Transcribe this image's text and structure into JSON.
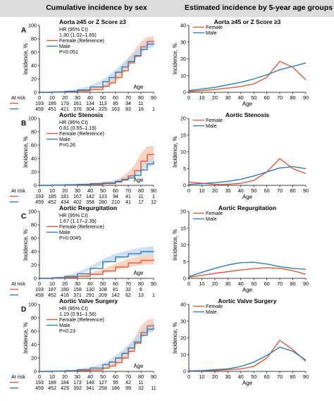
{
  "header": {
    "left_title": "Cumulative incidence by sex",
    "right_title": "Estimated incidence by 5-year age groups"
  },
  "colors": {
    "female": "#e8572a",
    "male": "#2b7bbf",
    "female_band": "#f6c2a8",
    "male_band": "#b9d6ee"
  },
  "chart_data": [
    {
      "type": "line",
      "panel": "A",
      "title": "Aorta ≥45 or Z Score ≥3",
      "xlabel": "Age",
      "ylabel": "Incidence, %",
      "xlim": [
        0,
        90
      ],
      "ylim": [
        0,
        100
      ],
      "xticks": [
        0,
        10,
        20,
        30,
        40,
        50,
        60,
        70,
        80,
        90
      ],
      "yticks": [
        0,
        20,
        40,
        60,
        80,
        100
      ],
      "stats": [
        "HR (95% CI)",
        "1.30 (1.02–1.65)",
        "P=0.051"
      ],
      "legend": [
        "Female (Reference)",
        "Male"
      ],
      "series": [
        {
          "name": "Female (Reference)",
          "color": "female",
          "x": [
            0,
            10,
            20,
            30,
            40,
            50,
            55,
            60,
            65,
            70,
            75,
            80,
            85,
            90
          ],
          "y": [
            0,
            0.3,
            0.8,
            2,
            4,
            9,
            14,
            22,
            32,
            44,
            55,
            68,
            76,
            77
          ],
          "lower": [
            0,
            0,
            0.2,
            1,
            2.5,
            6,
            10,
            16,
            25,
            36,
            47,
            60,
            69,
            71
          ],
          "upper": [
            0,
            0.8,
            1.5,
            3.5,
            6,
            12,
            18,
            28,
            39,
            52,
            63,
            76,
            83,
            84
          ]
        },
        {
          "name": "Male",
          "color": "male",
          "x": [
            0,
            10,
            20,
            30,
            40,
            50,
            55,
            60,
            65,
            70,
            75,
            80,
            85,
            90
          ],
          "y": [
            0,
            0.5,
            1.5,
            3.5,
            8,
            16,
            22,
            30,
            38,
            46,
            54,
            64,
            72,
            74
          ],
          "lower": [
            0,
            0.2,
            0.8,
            2,
            6,
            13,
            18,
            26,
            34,
            42,
            49,
            58,
            66,
            67
          ],
          "upper": [
            0,
            0.9,
            2.2,
            5,
            10,
            19,
            26,
            34,
            43,
            51,
            59,
            70,
            78,
            80
          ]
        }
      ],
      "at_risk": {
        "label": "At risk",
        "female": [
          "193",
          "185",
          "179",
          "161",
          "134",
          "113",
          "85",
          "34",
          "11"
        ],
        "male": [
          "459",
          "451",
          "421",
          "376",
          "304",
          "225",
          "163",
          "83",
          "18",
          "1"
        ]
      }
    },
    {
      "type": "line",
      "panel": "A",
      "title": "Aorta ≥45 or Z Score ≥3",
      "xlabel": "Age",
      "ylabel": "Incidence, %",
      "xlim": [
        0,
        90
      ],
      "ylim": [
        0,
        40
      ],
      "xticks": [
        0,
        10,
        20,
        30,
        40,
        50,
        60,
        70,
        80,
        90
      ],
      "yticks": [
        0,
        10,
        20,
        30,
        40
      ],
      "legend": [
        "Female",
        "Male"
      ],
      "series": [
        {
          "name": "Female",
          "color": "female",
          "x": [
            0,
            10,
            20,
            30,
            40,
            50,
            60,
            70,
            80,
            90
          ],
          "y": [
            0.5,
            1,
            1.7,
            2.5,
            3.5,
            5,
            9,
            18.5,
            15,
            7.5
          ]
        },
        {
          "name": "Male",
          "color": "male",
          "x": [
            0,
            10,
            20,
            30,
            40,
            50,
            60,
            70,
            80,
            90
          ],
          "y": [
            1,
            2,
            3,
            4.5,
            6,
            8,
            10.5,
            13.5,
            15.5,
            17.5
          ]
        }
      ]
    },
    {
      "type": "line",
      "panel": "B",
      "title": "Aortic Stenosis",
      "xlabel": "Age",
      "ylabel": "Incidence, %",
      "xlim": [
        0,
        90
      ],
      "ylim": [
        0,
        100
      ],
      "xticks": [
        0,
        10,
        20,
        30,
        40,
        50,
        60,
        70,
        80,
        90
      ],
      "yticks": [
        0,
        20,
        40,
        60,
        80,
        100
      ],
      "stats": [
        "HR (95% CI)",
        "0.81 (0.55–1.19)",
        "P=0.26"
      ],
      "legend": [
        "Female (Reference)",
        "Male"
      ],
      "series": [
        {
          "name": "Female (Reference)",
          "color": "female",
          "x": [
            0,
            10,
            20,
            30,
            40,
            50,
            60,
            65,
            70,
            75,
            80,
            85,
            90
          ],
          "y": [
            0,
            0.3,
            0.5,
            1,
            1.5,
            2.5,
            5,
            9,
            14,
            22,
            36,
            46,
            47
          ],
          "lower": [
            0,
            0,
            0.1,
            0.4,
            0.8,
            1.5,
            3,
            6,
            9,
            15,
            26,
            34,
            35
          ],
          "upper": [
            0,
            0.6,
            1,
            1.8,
            2.5,
            4,
            8,
            13,
            20,
            30,
            48,
            58,
            59
          ]
        },
        {
          "name": "Male",
          "color": "male",
          "x": [
            0,
            10,
            20,
            30,
            40,
            50,
            60,
            65,
            70,
            75,
            80,
            85,
            90
          ],
          "y": [
            0,
            0.5,
            1,
            1.5,
            2.5,
            3.5,
            6,
            8,
            11,
            15,
            23,
            32,
            36
          ],
          "lower": [
            0,
            0.2,
            0.5,
            0.8,
            1.5,
            2.5,
            4.5,
            6,
            8.5,
            12,
            19,
            27,
            30
          ],
          "upper": [
            0,
            0.8,
            1.5,
            2.2,
            3.5,
            5,
            7.5,
            10,
            14,
            18,
            27,
            37,
            42
          ]
        }
      ],
      "at_risk": {
        "label": "At risk",
        "female": [
          "193",
          "185",
          "181",
          "167",
          "142",
          "123",
          "94",
          "41",
          "11",
          "1"
        ],
        "male": [
          "459",
          "452",
          "434",
          "402",
          "358",
          "280",
          "210",
          "41",
          "17",
          "12"
        ]
      }
    },
    {
      "type": "line",
      "panel": "B",
      "title": "Aortic Stenosis",
      "xlabel": "Age",
      "ylabel": "Incidence, %",
      "xlim": [
        0,
        90
      ],
      "ylim": [
        0,
        20
      ],
      "xticks": [
        0,
        10,
        20,
        30,
        40,
        50,
        60,
        70,
        80,
        90
      ],
      "yticks": [
        0,
        5,
        10,
        15,
        20
      ],
      "legend": [
        "Female",
        "Male"
      ],
      "series": [
        {
          "name": "Female",
          "color": "female",
          "x": [
            0,
            10,
            20,
            30,
            40,
            50,
            60,
            70,
            80,
            90
          ],
          "y": [
            1,
            0.6,
            0.3,
            0.3,
            0.6,
            1.5,
            4,
            8,
            5,
            3.5
          ]
        },
        {
          "name": "Male",
          "color": "male",
          "x": [
            0,
            10,
            20,
            30,
            40,
            50,
            60,
            70,
            80,
            90
          ],
          "y": [
            0.3,
            0.5,
            0.8,
            1.2,
            1.8,
            2.8,
            4,
            5.2,
            5.6,
            5
          ]
        }
      ]
    },
    {
      "type": "line",
      "panel": "C",
      "title": "Aortic Regurgitation",
      "xlabel": "Age",
      "ylabel": "Incidence, %",
      "xlim": [
        0,
        90
      ],
      "ylim": [
        0,
        100
      ],
      "xticks": [
        0,
        10,
        20,
        30,
        40,
        50,
        60,
        70,
        80,
        90
      ],
      "yticks": [
        0,
        20,
        40,
        60,
        80,
        100
      ],
      "stats": [
        "HR (95% CI)",
        "1.67 (1.17–2.39)",
        "P=0.0045"
      ],
      "legend": [
        "Female (Reference)",
        "Male"
      ],
      "series": [
        {
          "name": "Female (Reference)",
          "color": "female",
          "x": [
            0,
            10,
            20,
            30,
            40,
            50,
            60,
            70,
            80,
            90
          ],
          "y": [
            0,
            0.5,
            1.5,
            3,
            6,
            11,
            17,
            23,
            27,
            28
          ],
          "lower": [
            0,
            0.1,
            0.8,
            1.8,
            4,
            8,
            12,
            17,
            20,
            21
          ],
          "upper": [
            0,
            1,
            2.5,
            4.5,
            8.5,
            14,
            22,
            29,
            34,
            36
          ]
        },
        {
          "name": "Male",
          "color": "male",
          "x": [
            0,
            10,
            20,
            30,
            40,
            50,
            60,
            70,
            80,
            90
          ],
          "y": [
            0,
            1,
            3,
            7,
            15,
            25,
            32,
            37,
            40,
            41
          ],
          "lower": [
            0,
            0.5,
            2,
            5,
            12,
            21,
            28,
            32,
            34,
            35
          ],
          "upper": [
            0,
            1.5,
            4,
            9,
            18,
            29,
            37,
            42,
            46,
            48
          ]
        }
      ],
      "at_risk": {
        "label": "At risk",
        "female": [
          "193",
          "187",
          "180",
          "158",
          "130",
          "108",
          "81",
          "32",
          "6"
        ],
        "male": [
          "459",
          "452",
          "416",
          "371",
          "291",
          "209",
          "142",
          "62",
          "13",
          "1"
        ]
      }
    },
    {
      "type": "line",
      "panel": "C",
      "title": "Aortic Regurgitation",
      "xlabel": "Age",
      "ylabel": "Incidence, %",
      "xlim": [
        0,
        90
      ],
      "ylim": [
        0,
        20
      ],
      "xticks": [
        0,
        10,
        20,
        30,
        40,
        50,
        60,
        70,
        80,
        90
      ],
      "yticks": [
        0,
        5,
        10,
        15,
        20
      ],
      "legend": [
        "Female",
        "Male"
      ],
      "series": [
        {
          "name": "Female",
          "color": "female",
          "x": [
            0,
            10,
            20,
            30,
            40,
            50,
            60,
            70,
            80,
            90
          ],
          "y": [
            0.3,
            0.9,
            1.5,
            2,
            2.5,
            2.9,
            3.2,
            3,
            2.3,
            1.2
          ]
        },
        {
          "name": "Male",
          "color": "male",
          "x": [
            0,
            10,
            20,
            30,
            40,
            50,
            60,
            70,
            80,
            90
          ],
          "y": [
            0.5,
            1.8,
            3,
            4,
            4.7,
            4.8,
            4.3,
            3.5,
            3,
            2.7
          ]
        }
      ]
    },
    {
      "type": "line",
      "panel": "D",
      "title": "Aortic Valve Surgery",
      "xlabel": "Age",
      "ylabel": "Incidence, %",
      "xlim": [
        0,
        90
      ],
      "ylim": [
        0,
        100
      ],
      "xticks": [
        0,
        10,
        20,
        30,
        40,
        50,
        60,
        70,
        80,
        90
      ],
      "yticks": [
        0,
        20,
        40,
        60,
        80,
        100
      ],
      "stats": [
        "HR (95% CI)",
        "1.19 (0.91–1.56)",
        "P=0.23"
      ],
      "legend": [
        "Female (Reference)",
        "Male"
      ],
      "series": [
        {
          "name": "Female (Reference)",
          "color": "female",
          "x": [
            0,
            10,
            20,
            30,
            40,
            50,
            55,
            60,
            65,
            70,
            75,
            80,
            85,
            90
          ],
          "y": [
            0,
            0.2,
            0.5,
            1,
            2,
            5,
            8,
            13,
            20,
            30,
            42,
            58,
            68,
            70
          ],
          "lower": [
            0,
            0,
            0.1,
            0.4,
            1,
            3,
            5,
            9,
            15,
            23,
            34,
            48,
            58,
            60
          ],
          "upper": [
            0,
            0.5,
            1,
            2,
            3.5,
            7,
            11,
            17,
            26,
            37,
            50,
            68,
            77,
            79
          ]
        },
        {
          "name": "Male",
          "color": "male",
          "x": [
            0,
            10,
            20,
            30,
            40,
            50,
            55,
            60,
            65,
            70,
            75,
            80,
            85,
            90
          ],
          "y": [
            0,
            0.5,
            1,
            2.5,
            5,
            10,
            14,
            20,
            27,
            35,
            44,
            54,
            63,
            66
          ],
          "lower": [
            0,
            0.2,
            0.5,
            1.5,
            3.5,
            8,
            11,
            17,
            23,
            31,
            40,
            49,
            57,
            59
          ],
          "upper": [
            0,
            0.8,
            1.5,
            3.5,
            6.5,
            12,
            17,
            24,
            31,
            40,
            49,
            60,
            69,
            73
          ]
        }
      ],
      "at_risk": {
        "label": "At risk",
        "female": [
          "193",
          "188",
          "184",
          "172",
          "148",
          "127",
          "95",
          "42",
          "11"
        ],
        "male": [
          "459",
          "452",
          "429",
          "392",
          "341",
          "258",
          "186",
          "99",
          "32",
          "11"
        ]
      }
    },
    {
      "type": "line",
      "panel": "D",
      "title": "Aortic Valve Surgery",
      "xlabel": "Age",
      "ylabel": "Incidence, %",
      "xlim": [
        0,
        90
      ],
      "ylim": [
        0,
        40
      ],
      "xticks": [
        0,
        10,
        20,
        30,
        40,
        50,
        60,
        70,
        80,
        90
      ],
      "yticks": [
        0,
        10,
        20,
        30,
        40
      ],
      "legend": [
        "Female",
        "Male"
      ],
      "series": [
        {
          "name": "Female",
          "color": "female",
          "x": [
            0,
            10,
            20,
            30,
            40,
            50,
            60,
            70,
            80,
            90
          ],
          "y": [
            0.2,
            0.3,
            0.5,
            1,
            1.5,
            3,
            8,
            18.5,
            13,
            6
          ]
        },
        {
          "name": "Male",
          "color": "male",
          "x": [
            0,
            10,
            20,
            30,
            40,
            50,
            60,
            70,
            80,
            90
          ],
          "y": [
            0.3,
            0.5,
            1,
            1.5,
            3,
            5.5,
            9.5,
            14.5,
            12,
            6.8
          ]
        }
      ]
    }
  ]
}
